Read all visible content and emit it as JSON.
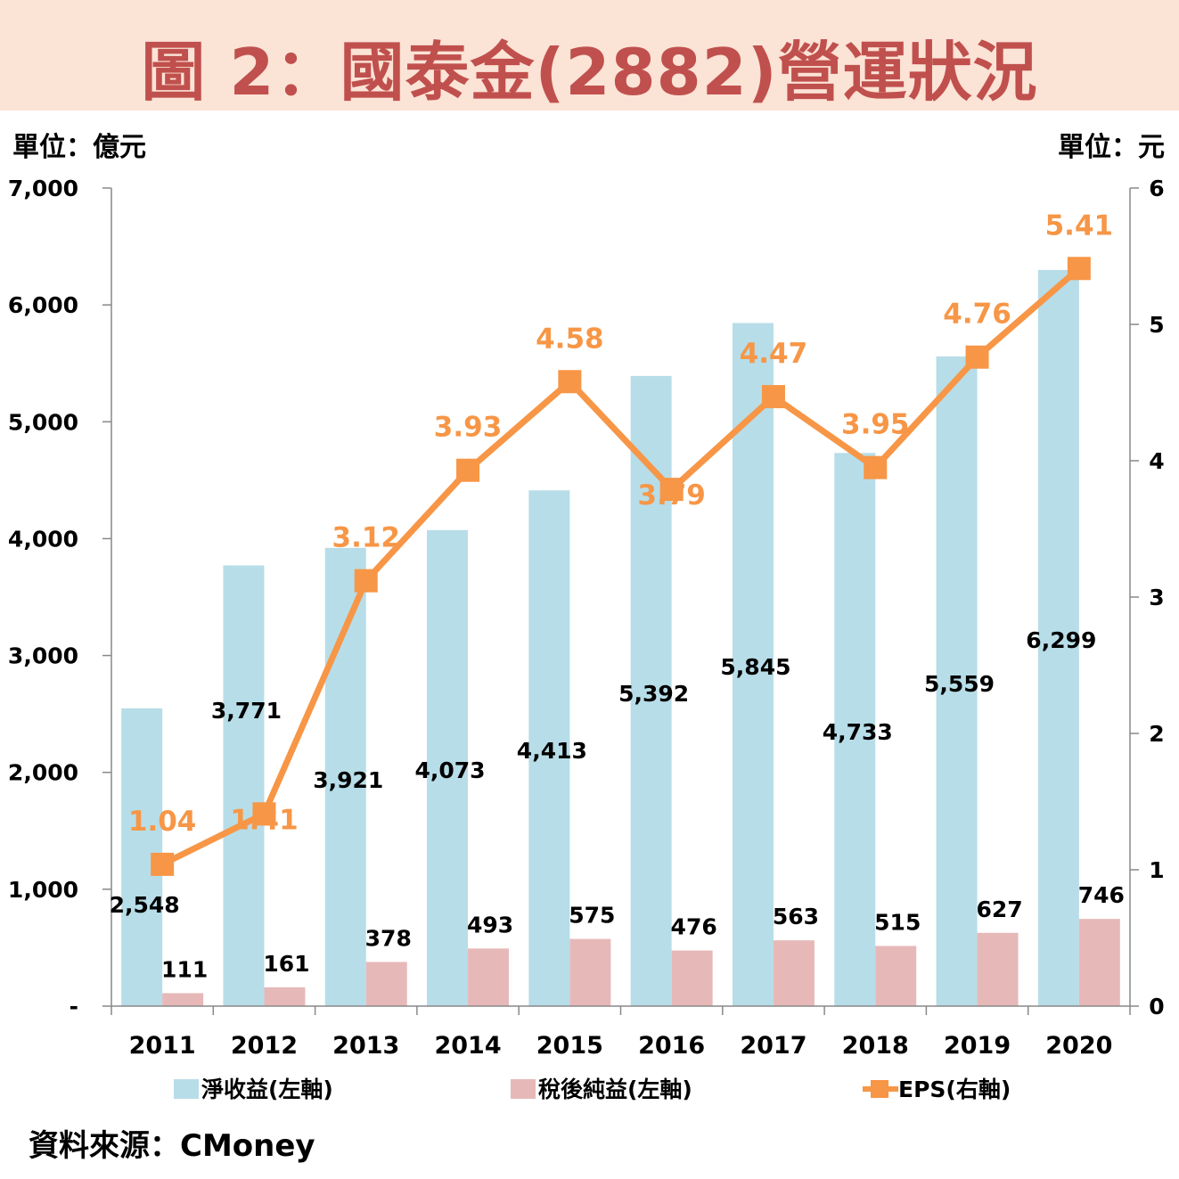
{
  "header": {
    "title": "圖 2：國泰金(2882)營運狀況"
  },
  "units": {
    "left": "單位：億元",
    "right": "單位：元"
  },
  "source": "資料來源：CMoney",
  "colors": {
    "net_revenue": "#b7dde8",
    "net_income": "#e6b9b8",
    "eps": "#f79646",
    "title": "#c0504d",
    "title_bg": "#fbe3d6"
  },
  "chart_data": {
    "type": "bar",
    "categories": [
      "2011",
      "2012",
      "2013",
      "2014",
      "2015",
      "2016",
      "2017",
      "2018",
      "2019",
      "2020"
    ],
    "series": [
      {
        "name": "淨收益(左軸)",
        "type": "bar",
        "axis": "left",
        "values": [
          2548,
          3771,
          3921,
          4073,
          4413,
          5392,
          5845,
          4733,
          5559,
          6299
        ],
        "labels": [
          "2,548",
          "3,771",
          "3,921",
          "4,073",
          "4,413",
          "5,392",
          "5,845",
          "4,733",
          "5,559",
          "6,299"
        ]
      },
      {
        "name": "稅後純益(左軸)",
        "type": "bar",
        "axis": "left",
        "values": [
          111,
          161,
          378,
          493,
          575,
          476,
          563,
          515,
          627,
          746
        ],
        "labels": [
          "111",
          "161",
          "378",
          "493",
          "575",
          "476",
          "563",
          "515",
          "627",
          "746"
        ]
      },
      {
        "name": "EPS(右軸)",
        "type": "line",
        "axis": "right",
        "values": [
          1.04,
          1.41,
          3.12,
          3.93,
          4.58,
          3.79,
          4.47,
          3.95,
          4.76,
          5.41
        ],
        "labels": [
          "1.04",
          "1.41",
          "3.12",
          "3.93",
          "4.58",
          "3.79",
          "4.47",
          "3.95",
          "4.76",
          "5.41"
        ]
      }
    ],
    "y_left": {
      "range": [
        0,
        7000
      ],
      "ticks": [
        0,
        1000,
        2000,
        3000,
        4000,
        5000,
        6000,
        7000
      ],
      "tick_labels": [
        "-",
        "1,000",
        "2,000",
        "3,000",
        "4,000",
        "5,000",
        "6,000",
        "7,000"
      ]
    },
    "y_right": {
      "range": [
        0,
        6
      ],
      "ticks": [
        0,
        1,
        2,
        3,
        4,
        5,
        6
      ],
      "tick_labels": [
        "0",
        "1",
        "2",
        "3",
        "4",
        "5",
        "6"
      ]
    },
    "grid": false,
    "legend_position": "bottom"
  }
}
